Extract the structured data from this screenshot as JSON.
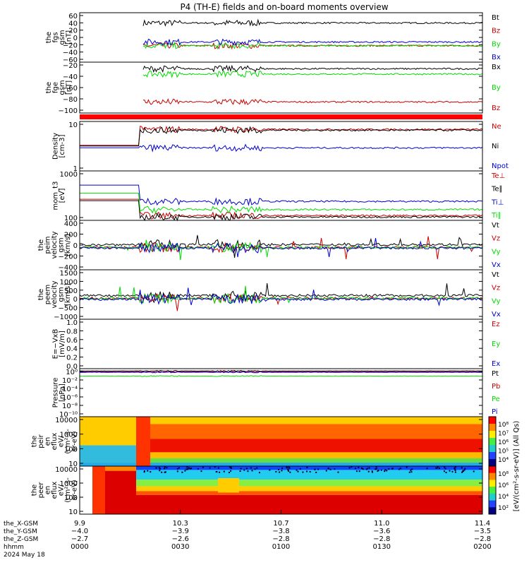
{
  "title": "P4 (TH-E) fields and on-board moments overview",
  "colors": {
    "black": "#000000",
    "red": "#cc0000",
    "green": "#00dd00",
    "blue": "#0000cc"
  },
  "panels": [
    {
      "ylabel": [
        "the",
        "fgs",
        "gsm",
        "[nT]"
      ],
      "ticks": [
        "60",
        "40",
        "20",
        "0",
        "−20",
        "−40",
        "−60"
      ],
      "legend": [
        {
          "text": "Bt",
          "color": "black"
        },
        {
          "text": "Bz",
          "color": "red"
        },
        {
          "text": "By",
          "color": "green"
        },
        {
          "text": "Bx",
          "color": "blue"
        }
      ]
    },
    {
      "ylabel": [
        "the",
        "fge",
        "gsm",
        "[nT]"
      ],
      "ticks": [
        "−20",
        "−40",
        "−60",
        "−80",
        "−100"
      ],
      "legend": [
        {
          "text": "Bx",
          "color": "black"
        },
        {
          "text": "By",
          "color": "green"
        },
        {
          "text": "Bz",
          "color": "red"
        }
      ]
    },
    {
      "ylabel": [
        "Density",
        "[cm-3]"
      ],
      "ticks": [
        "10",
        "1"
      ],
      "legend": [
        {
          "text": "Ne",
          "color": "red"
        },
        {
          "text": "Ni",
          "color": "black"
        },
        {
          "text": "Npot",
          "color": "blue"
        }
      ]
    },
    {
      "ylabel": [
        "mom_t3",
        "[eV]"
      ],
      "ticks": [
        "1000",
        "100"
      ],
      "legend": [
        {
          "text": "Te⊥",
          "color": "red"
        },
        {
          "text": "Te∥",
          "color": "black"
        },
        {
          "text": "Ti⊥",
          "color": "blue"
        },
        {
          "text": "Ti∥",
          "color": "green"
        }
      ]
    },
    {
      "ylabel": [
        "the",
        "peim",
        "velocity",
        "gsm",
        "[km/s]"
      ],
      "ticks": [
        "400",
        "200",
        "0",
        "−200",
        "−400"
      ],
      "legend": [
        {
          "text": "Vt",
          "color": "black"
        },
        {
          "text": "Vz",
          "color": "red"
        },
        {
          "text": "Vy",
          "color": "green"
        },
        {
          "text": "Vx",
          "color": "blue"
        }
      ]
    },
    {
      "ylabel": [
        "the",
        "peem",
        "velocity",
        "gsm",
        "[km/s]"
      ],
      "ticks": [
        "1500",
        "1000",
        "500",
        "0",
        "−500",
        "−1000"
      ],
      "legend": [
        {
          "text": "Vt",
          "color": "black"
        },
        {
          "text": "Vz",
          "color": "red"
        },
        {
          "text": "Vy",
          "color": "green"
        },
        {
          "text": "Vx",
          "color": "blue"
        }
      ]
    },
    {
      "ylabel": [
        "E=−VxB",
        "[mV/m]"
      ],
      "ticks": [
        "1.0",
        "0.8",
        "0.6",
        "0.4",
        "0.2",
        "0.0"
      ],
      "legend": [
        {
          "text": "Ez",
          "color": "red"
        },
        {
          "text": "Ey",
          "color": "green"
        },
        {
          "text": "Ex",
          "color": "blue"
        }
      ]
    },
    {
      "ylabel": [
        "Pressure",
        "[nPa]"
      ],
      "ticks": [
        "10⁰",
        "10⁻²",
        "10⁻⁴",
        "10⁻⁶",
        "10⁻⁸",
        "10⁻¹⁰"
      ],
      "legend": [
        {
          "text": "Pt",
          "color": "black"
        },
        {
          "text": "Pb",
          "color": "red"
        },
        {
          "text": "Pe",
          "color": "green"
        },
        {
          "text": "Pi",
          "color": "blue"
        }
      ]
    },
    {
      "ylabel": [
        "the",
        "peir",
        "en",
        "eflux",
        "eV/",
        "(cm²-s-",
        "sr-eV)"
      ],
      "ticks": [
        "10000",
        "1000",
        "100",
        "10"
      ],
      "legend": []
    },
    {
      "ylabel": [
        "the",
        "peer",
        "en",
        "eflux",
        "eV/",
        "(cm²-s-",
        "sr-eV)"
      ],
      "ticks": [
        "10000",
        "1000",
        "100",
        "10"
      ],
      "legend": []
    }
  ],
  "colorbars": [
    {
      "ticks": [
        "10⁸",
        "10⁷",
        "10⁶",
        "10⁵",
        "10⁴"
      ]
    },
    {
      "ticks": [
        "10⁸",
        "10⁶",
        "10⁴",
        "10²"
      ]
    }
  ],
  "colorbar_label": "[eV/(cm²-s-sr-eV)] (All Qs)",
  "xaxis": {
    "row_labels": [
      "the_X-GSM",
      "the_Y-GSM",
      "the_Z-GSM",
      "hhmm",
      "2024 May 18"
    ],
    "columns": [
      [
        "9.9",
        "−4.0",
        "−2.7",
        "0000"
      ],
      [
        "10.3",
        "−3.9",
        "−2.6",
        "0030"
      ],
      [
        "10.7",
        "−3.8",
        "−2.8",
        "0100"
      ],
      [
        "11.0",
        "−3.6",
        "−2.8",
        "0130"
      ],
      [
        "11.4",
        "−3.5",
        "−2.8",
        "0200"
      ]
    ]
  },
  "chart_data": {
    "type": "line",
    "title": "P4 (TH-E) fields and on-board moments overview",
    "x_axis": {
      "label": "hhmm",
      "range": [
        "0000",
        "0200"
      ],
      "ticks": [
        "0000",
        "0030",
        "0100",
        "0130",
        "0200"
      ]
    },
    "panels": [
      {
        "name": "the_fgs_gsm",
        "units": "nT",
        "ylim": [
          -65,
          70
        ],
        "series": [
          {
            "name": "Bt",
            "color": "black",
            "level": 42
          },
          {
            "name": "Bz",
            "color": "red",
            "level": -20
          },
          {
            "name": "By",
            "color": "green",
            "level": -20
          },
          {
            "name": "Bx",
            "color": "blue",
            "level": -10
          }
        ]
      },
      {
        "name": "the_fge_gsm",
        "units": "nT",
        "ylim": [
          -110,
          5
        ],
        "series": [
          {
            "name": "Bx",
            "color": "black",
            "level": -10
          },
          {
            "name": "By",
            "color": "green",
            "level": -22
          },
          {
            "name": "Bz",
            "color": "red",
            "level": -85
          }
        ]
      },
      {
        "name": "Density",
        "units": "cm-3",
        "log": true,
        "ylim": [
          0.4,
          30
        ],
        "series": [
          {
            "name": "Ne",
            "color": "red",
            "level": 15
          },
          {
            "name": "Ni",
            "color": "black",
            "level": 14
          },
          {
            "name": "Npot",
            "color": "blue",
            "level": 3
          }
        ]
      },
      {
        "name": "mom_t3",
        "units": "eV",
        "log": true,
        "ylim": [
          60,
          4000
        ],
        "series": [
          {
            "name": "Te⊥",
            "color": "red",
            "level": 90
          },
          {
            "name": "Te∥",
            "color": "black",
            "level": 80
          },
          {
            "name": "Ti⊥",
            "color": "blue",
            "level": 300
          },
          {
            "name": "Ti∥",
            "color": "green",
            "level": 150
          }
        ]
      },
      {
        "name": "the_peim_velocity_gsm",
        "units": "km/s",
        "ylim": [
          -450,
          550
        ],
        "series": [
          {
            "name": "Vt",
            "color": "black",
            "level": 60
          },
          {
            "name": "Vz",
            "color": "red",
            "level": 0
          },
          {
            "name": "Vy",
            "color": "green",
            "level": 0
          },
          {
            "name": "Vx",
            "color": "blue",
            "level": -10
          }
        ]
      },
      {
        "name": "the_peem_velocity_gsm",
        "units": "km/s",
        "ylim": [
          -1100,
          1500
        ],
        "series": [
          {
            "name": "Vt",
            "color": "black",
            "level": 150
          },
          {
            "name": "Vz",
            "color": "red",
            "level": 0
          },
          {
            "name": "Vy",
            "color": "green",
            "level": 0
          },
          {
            "name": "Vx",
            "color": "blue",
            "level": -50
          }
        ]
      },
      {
        "name": "E=-VxB",
        "units": "mV/m",
        "ylim": [
          0,
          1
        ],
        "series": []
      },
      {
        "name": "Pressure",
        "units": "nPa",
        "log": true,
        "ylim": [
          1e-11,
          1
        ],
        "series": [
          {
            "name": "Pt",
            "color": "black",
            "level": 0.3
          },
          {
            "name": "Pb",
            "color": "red",
            "level": 0.2
          },
          {
            "name": "Pe",
            "color": "green",
            "level": 0.02
          },
          {
            "name": "Pi",
            "color": "blue",
            "level": 0.15
          }
        ]
      },
      {
        "name": "the_peir_en_eflux",
        "type": "heatmap",
        "units": "eV/(cm2-s-sr-eV)",
        "log": true,
        "ylim": [
          6,
          20000
        ]
      },
      {
        "name": "the_peer_en_eflux",
        "type": "heatmap",
        "units": "eV/(cm2-s-sr-eV)",
        "log": true,
        "ylim": [
          6,
          20000
        ]
      }
    ]
  }
}
